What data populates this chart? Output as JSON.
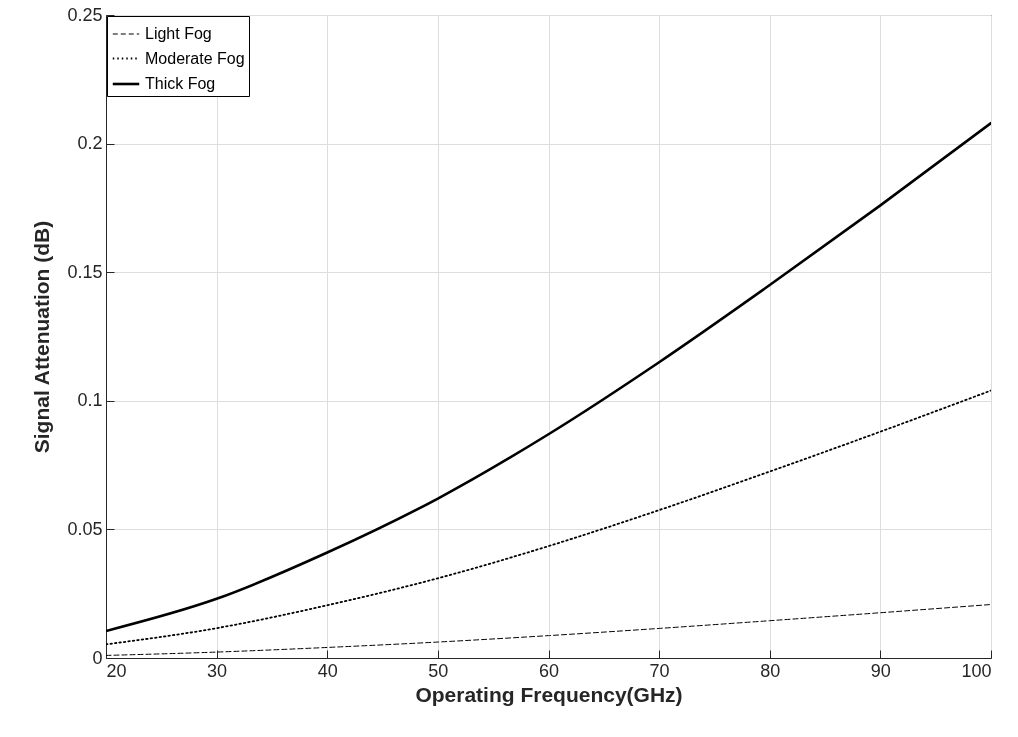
{
  "chart_data": {
    "type": "line",
    "xlabel": "Operating Frequency(GHz)",
    "ylabel": "Signal Attenuation (dB)",
    "x": [
      20,
      30,
      40,
      50,
      60,
      70,
      80,
      90,
      100
    ],
    "series": [
      {
        "name": "Light Fog",
        "color": "#000000",
        "line_style": "dashed",
        "values": [
          0.001,
          0.0023,
          0.0041,
          0.0062,
          0.0087,
          0.0115,
          0.0145,
          0.0176,
          0.0208
        ]
      },
      {
        "name": "Moderate Fog",
        "color": "#000000",
        "line_style": "dotted",
        "values": [
          0.0053,
          0.0116,
          0.0205,
          0.031,
          0.0435,
          0.0575,
          0.0725,
          0.088,
          0.104
        ]
      },
      {
        "name": "Thick Fog",
        "color": "#000000",
        "line_style": "solid",
        "values": [
          0.0105,
          0.023,
          0.041,
          0.062,
          0.087,
          0.115,
          0.145,
          0.176,
          0.208
        ]
      }
    ],
    "xlim": [
      20,
      100
    ],
    "xticks": [
      20,
      30,
      40,
      50,
      60,
      70,
      80,
      90,
      100
    ],
    "ylim": [
      0,
      0.25
    ],
    "yticks": [
      0,
      0.05,
      0.1,
      0.15,
      0.2,
      0.25
    ],
    "grid": true,
    "legend": "top left"
  }
}
